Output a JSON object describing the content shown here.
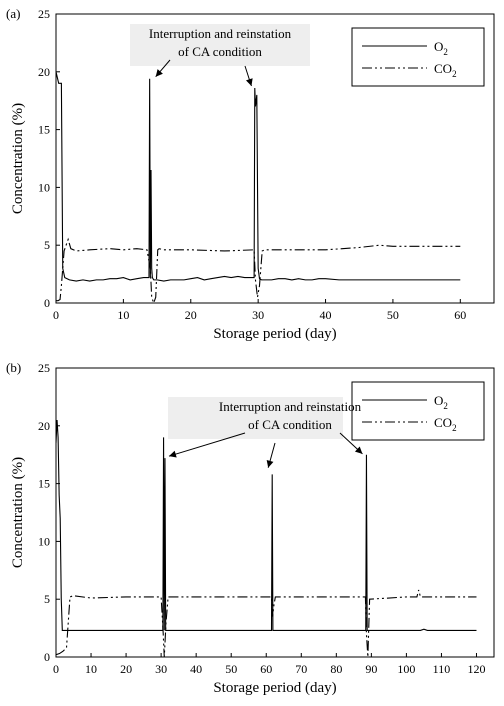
{
  "chart_data": [
    {
      "type": "line",
      "panel_label": "(a)",
      "xlabel": "Storage period (day)",
      "ylabel": "Concentration (%)",
      "xlim": [
        0,
        65
      ],
      "ylim": [
        0,
        25
      ],
      "xticks": [
        0,
        10,
        20,
        30,
        40,
        50,
        60
      ],
      "yticks": [
        0,
        5,
        10,
        15,
        20,
        25
      ],
      "grid": false,
      "legend_position": "top-right",
      "annotation": {
        "lines": [
          "Interruption and reinstation",
          "of CA condition"
        ],
        "arrows_to_day": [
          14,
          30
        ]
      },
      "series": [
        {
          "name": "O2",
          "name_main": "O",
          "name_sub": "2",
          "style": "solid",
          "x": [
            0,
            0.2,
            0.4,
            0.6,
            0.8,
            1.0,
            1.3,
            2,
            3,
            4,
            5,
            6,
            7,
            8,
            9,
            10,
            11,
            12,
            13,
            13.8,
            13.9,
            14.0,
            14.1,
            14.2,
            14.3,
            14.5,
            15,
            16,
            17,
            18,
            19,
            20,
            21,
            22,
            23,
            24,
            25,
            26,
            27,
            28,
            29,
            29.4,
            29.5,
            29.6,
            29.8,
            30.0,
            30.2,
            30.5,
            31,
            32,
            33,
            34,
            35,
            36,
            37,
            38,
            39,
            40,
            42,
            45,
            50,
            55,
            60
          ],
          "y": [
            20,
            19.5,
            19,
            19,
            19,
            3,
            2.2,
            2.0,
            1.9,
            2.0,
            1.9,
            2.0,
            2.0,
            2.1,
            2.1,
            2.2,
            2.0,
            2.1,
            2.2,
            2.2,
            19.4,
            2.2,
            11.5,
            3,
            2.2,
            2.0,
            2.0,
            1.9,
            2.0,
            2.0,
            2.0,
            2.1,
            2.2,
            2.0,
            2.1,
            2.2,
            2.3,
            2.2,
            2.3,
            2.2,
            2.2,
            2.2,
            18.6,
            17,
            18,
            3,
            2.1,
            2.0,
            2.0,
            2.0,
            2.1,
            2.1,
            2.0,
            2.1,
            2.0,
            2.0,
            2.1,
            2.1,
            2.0,
            2.0,
            2.0,
            2.0,
            2.0
          ]
        },
        {
          "name": "CO2",
          "name_main": "CO",
          "name_sub": "2",
          "style": "dash-dot-dot",
          "x": [
            0,
            0.3,
            0.6,
            0.8,
            1.0,
            1.2,
            1.5,
            1.8,
            2.2,
            3,
            5,
            8,
            10,
            12,
            13.5,
            14.0,
            14.2,
            14.5,
            14.8,
            15.1,
            15.3,
            16,
            20,
            25,
            29.4,
            29.6,
            29.9,
            30.2,
            30.6,
            31,
            35,
            40,
            45,
            48,
            50,
            55,
            60
          ],
          "y": [
            0.2,
            0.2,
            0.3,
            1.5,
            3,
            4.5,
            5.0,
            5.5,
            4.7,
            4.5,
            4.6,
            4.7,
            4.6,
            4.7,
            4.6,
            3,
            0.5,
            0,
            0.5,
            4.6,
            4.7,
            4.6,
            4.6,
            4.5,
            4.6,
            2,
            0.5,
            1.5,
            4.5,
            4.6,
            4.6,
            4.6,
            4.8,
            5.0,
            4.9,
            4.9,
            4.9
          ]
        }
      ]
    },
    {
      "type": "line",
      "panel_label": "(b)",
      "xlabel": "Storage period (day)",
      "ylabel": "Concentration (%)",
      "xlim": [
        0,
        125
      ],
      "ylim": [
        0,
        25
      ],
      "xticks": [
        0,
        10,
        20,
        30,
        40,
        50,
        60,
        70,
        80,
        90,
        100,
        110,
        120
      ],
      "yticks": [
        0,
        5,
        10,
        15,
        20,
        25
      ],
      "grid": false,
      "legend_position": "top-right",
      "annotation": {
        "lines": [
          "Interruption and reinstation",
          "of CA condition"
        ],
        "arrows_to_day": [
          31,
          62,
          88.5
        ]
      },
      "series": [
        {
          "name": "O2",
          "name_main": "O",
          "name_sub": "2",
          "style": "solid",
          "x": [
            0,
            0.3,
            0.6,
            0.9,
            1.2,
            1.5,
            1.8,
            2.2,
            3,
            10,
            20,
            30,
            30.5,
            30.7,
            30.9,
            31.1,
            31.3,
            31.5,
            32,
            40,
            50,
            61,
            61.5,
            61.7,
            61.9,
            62.2,
            62.5,
            70,
            80,
            88,
            88.4,
            88.6,
            88.8,
            89,
            89.3,
            95,
            100,
            104,
            105,
            106,
            110,
            115,
            120
          ],
          "y": [
            18.5,
            20.5,
            19,
            14,
            12,
            5,
            2.3,
            2.3,
            2.3,
            2.3,
            2.3,
            2.3,
            2.3,
            19,
            2.3,
            17.2,
            2.3,
            2.3,
            2.3,
            2.3,
            2.3,
            2.3,
            2.3,
            15.8,
            2.3,
            2.3,
            2.3,
            2.3,
            2.3,
            2.3,
            2.3,
            17.5,
            2.3,
            2.3,
            2.3,
            2.3,
            2.3,
            2.3,
            2.4,
            2.3,
            2.3,
            2.3,
            2.3
          ]
        },
        {
          "name": "CO2",
          "name_main": "CO",
          "name_sub": "2",
          "style": "dash-dot-dot",
          "x": [
            0,
            1.0,
            2.0,
            3.0,
            3.5,
            4.0,
            5,
            10,
            20,
            30,
            30.6,
            30.9,
            31.4,
            32,
            40,
            50,
            61.5,
            61.8,
            62.2,
            62.6,
            70,
            80,
            88.3,
            88.6,
            89.0,
            89.5,
            95,
            100,
            103,
            103.5,
            104,
            110,
            120
          ],
          "y": [
            0.2,
            0.3,
            0.5,
            0.8,
            3,
            5.2,
            5.3,
            5.1,
            5.2,
            5.2,
            2,
            0,
            3,
            5.2,
            5.2,
            5.2,
            5.2,
            3.5,
            4.5,
            5.2,
            5.2,
            5.2,
            5.2,
            2,
            0,
            5.0,
            5.1,
            5.2,
            5.2,
            5.8,
            5.2,
            5.2,
            5.2
          ]
        }
      ]
    }
  ]
}
